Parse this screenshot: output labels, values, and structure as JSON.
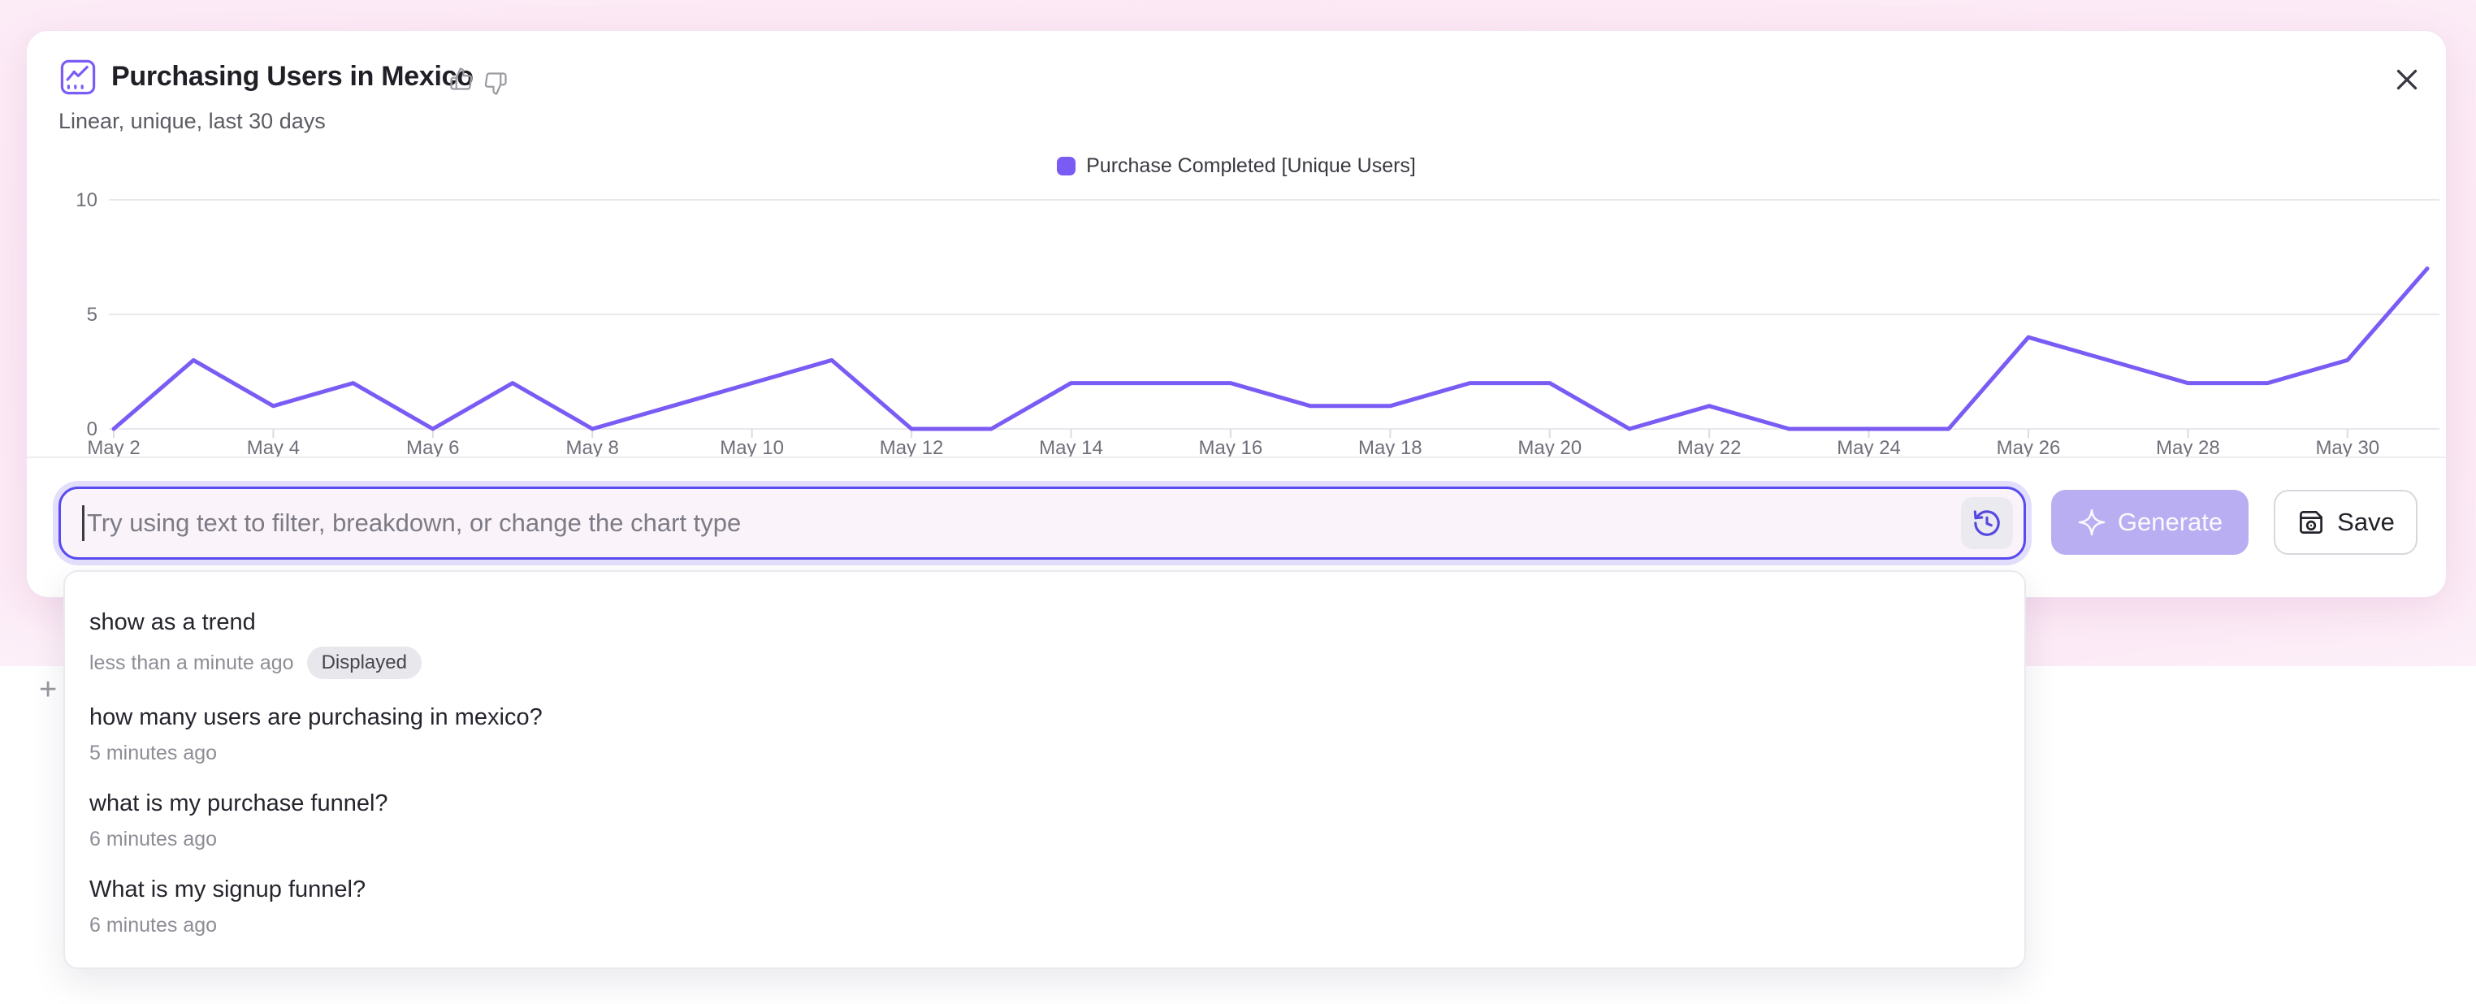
{
  "header": {
    "title": "Purchasing Users in Mexico",
    "subtitle": "Linear, unique, last 30 days"
  },
  "legend": {
    "label": "Purchase Completed [Unique Users]",
    "color": "#7a5cf5"
  },
  "chart_data": {
    "type": "line",
    "title": "Purchasing Users in Mexico",
    "x": [
      "May 2",
      "May 3",
      "May 4",
      "May 5",
      "May 6",
      "May 7",
      "May 8",
      "May 9",
      "May 10",
      "May 11",
      "May 12",
      "May 13",
      "May 14",
      "May 15",
      "May 16",
      "May 17",
      "May 18",
      "May 19",
      "May 20",
      "May 21",
      "May 22",
      "May 23",
      "May 24",
      "May 25",
      "May 26",
      "May 27",
      "May 28",
      "May 29",
      "May 30",
      "May 31"
    ],
    "series": [
      {
        "name": "Purchase Completed [Unique Users]",
        "color": "#7a5cf5",
        "values": [
          0,
          3,
          1,
          2,
          0,
          2,
          0,
          1,
          2,
          3,
          0,
          0,
          2,
          2,
          2,
          1,
          1,
          2,
          2,
          0,
          1,
          0,
          0,
          0,
          4,
          3,
          2,
          2,
          3,
          7
        ]
      }
    ],
    "ylim": [
      0,
      10
    ],
    "yticks": [
      0,
      5,
      10
    ],
    "xtick_every": 2,
    "grid": "horizontal",
    "legend_position": "top-center"
  },
  "prompt": {
    "placeholder": "Try using text to filter, breakdown, or change the chart type"
  },
  "toolbar": {
    "generate_label": "Generate",
    "save_label": "Save"
  },
  "history": {
    "items": [
      {
        "query": "show as a trend",
        "time": "less than a minute ago",
        "badge": "Displayed"
      },
      {
        "query": "how many users are purchasing in mexico?",
        "time": "5 minutes ago",
        "badge": ""
      },
      {
        "query": "what is my purchase funnel?",
        "time": "6 minutes ago",
        "badge": ""
      },
      {
        "query": "What is my signup funnel?",
        "time": "6 minutes ago",
        "badge": ""
      }
    ]
  },
  "misc": {
    "plus": "+"
  }
}
